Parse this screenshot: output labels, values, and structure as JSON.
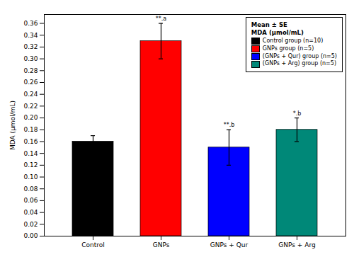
{
  "chart_data": {
    "type": "bar",
    "categories": [
      "Control",
      "GNPs",
      "GNPs + Qur",
      "GNPs + Arg"
    ],
    "values": [
      0.16,
      0.33,
      0.15,
      0.18
    ],
    "errors": [
      0.01,
      0.03,
      0.03,
      0.02
    ],
    "colors": [
      "#000000",
      "#ff0000",
      "#0000ff",
      "#008878"
    ],
    "ylabel": "MDA (μmol/mL)",
    "ylim": [
      0.0,
      0.375
    ],
    "yticks": [
      {
        "value": 0.0,
        "label": "0.00"
      },
      0.02,
      0.04,
      0.06,
      0.08,
      {
        "value": 0.1,
        "label": "0.10"
      },
      0.12,
      0.14,
      0.16,
      0.18,
      {
        "value": 0.2,
        "label": "0.20"
      },
      0.22,
      0.24,
      0.26,
      0.28,
      {
        "value": 0.3,
        "label": "0.30"
      },
      0.32,
      0.34,
      0.36
    ],
    "annotations": [
      null,
      "**.a",
      "**.b",
      "*.b"
    ],
    "legend": "upper right",
    "legend_title": [
      "Mean ± SE",
      "MDA (μmol/mL)"
    ],
    "legend_labels": [
      "Control group (n=10)",
      "GNPs group (n=5)",
      "(GNPs + Qur) group (n=5)",
      "(GNPs + Arg) group (n=5)"
    ],
    "grid": false
  }
}
